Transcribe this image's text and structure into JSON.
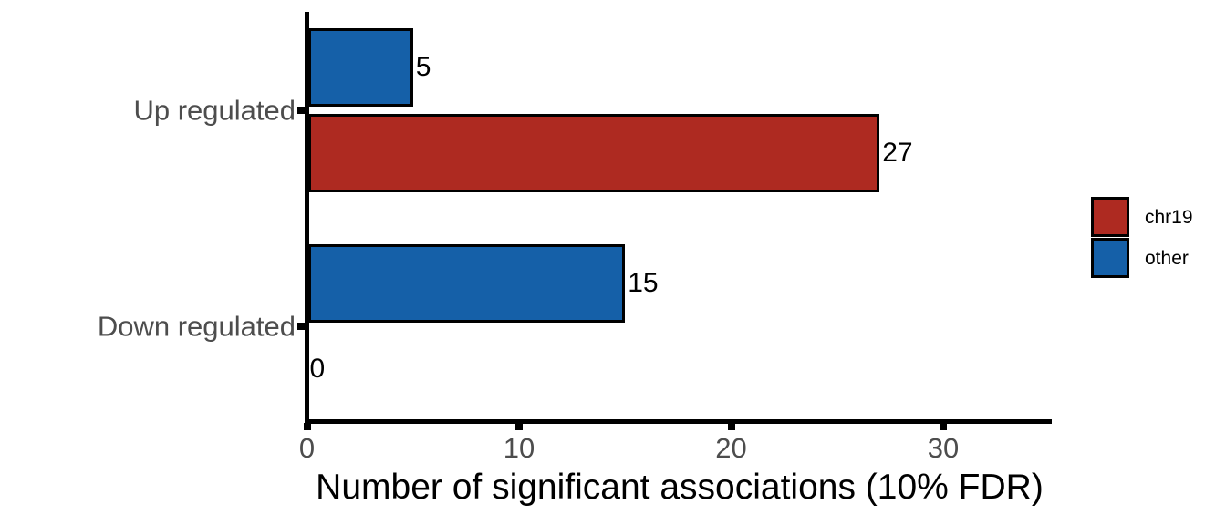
{
  "chart_data": {
    "type": "bar",
    "orientation": "horizontal",
    "title": "",
    "xlabel": "Number of significant associations (10% FDR)",
    "ylabel": "",
    "categories": [
      "Up regulated",
      "Down regulated"
    ],
    "series": [
      {
        "name": "chr19",
        "color": "#AE2A21",
        "values": [
          27,
          0
        ]
      },
      {
        "name": "other",
        "color": "#1560A8",
        "values": [
          5,
          15
        ]
      }
    ],
    "xlim": [
      0,
      35
    ],
    "xticks": [
      0,
      10,
      20,
      30
    ],
    "xtick_labels": [
      "0",
      "10",
      "20",
      "30"
    ],
    "bar_value_labels_shown": true,
    "grid": false,
    "legend_position": "right-middle"
  },
  "legend": {
    "items": [
      {
        "label": "chr19",
        "color": "#AE2A21"
      },
      {
        "label": "other",
        "color": "#1560A8"
      }
    ]
  },
  "colors": {
    "background": "#ffffff",
    "axis_line": "#000000",
    "bar_border": "#000000",
    "tick_label": "#4D4D4D",
    "category_label": "#4D4D4D",
    "value_label": "#000000",
    "legend_label": "#000000"
  }
}
